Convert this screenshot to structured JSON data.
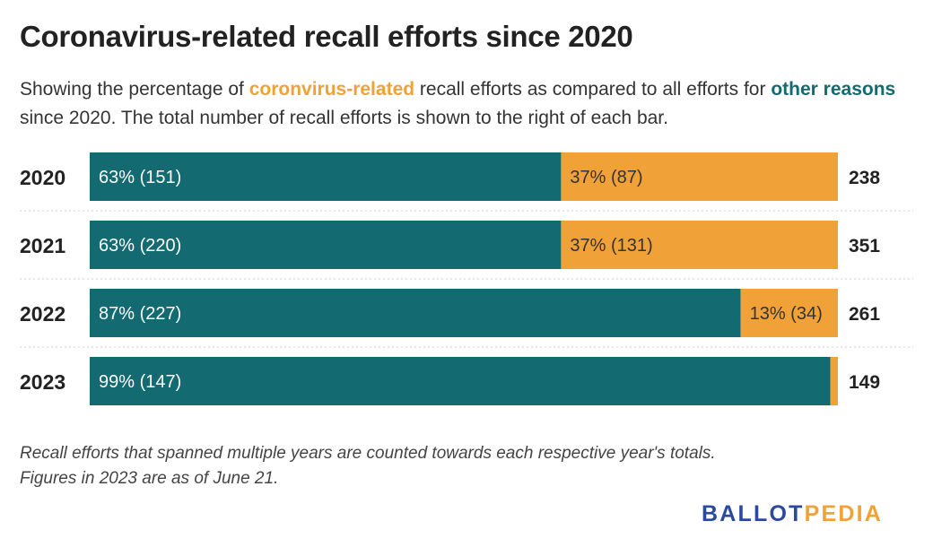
{
  "title": "Coronavirus-related recall efforts since 2020",
  "subtitle": {
    "part1": "Showing the percentage of ",
    "covid_label": "coronvirus-related",
    "part2": " recall efforts as compared to all efforts for ",
    "other_label": "other reasons",
    "part3": " since 2020. The total number of recall efforts is shown to the right of each bar."
  },
  "colors": {
    "other": "#136a70",
    "covid": "#f0a239",
    "separator": "#cccccc"
  },
  "chart_data": {
    "type": "bar",
    "orientation": "horizontal",
    "stacked": "percent",
    "categories": [
      "2020",
      "2021",
      "2022",
      "2023"
    ],
    "series": [
      {
        "key": "other",
        "values": [
          63,
          63,
          87,
          99
        ],
        "counts": [
          151,
          220,
          227,
          147
        ],
        "labels": [
          "63% (151)",
          "63% (220)",
          "87% (227)",
          "99% (147)"
        ]
      },
      {
        "key": "covid",
        "values": [
          37,
          37,
          13,
          1
        ],
        "counts": [
          87,
          131,
          34,
          2
        ],
        "labels": [
          "37% (87)",
          "37% (131)",
          "13% (34)",
          ""
        ]
      }
    ],
    "totals": [
      238,
      351,
      261,
      149
    ],
    "xlim": [
      0,
      100
    ],
    "grid": false
  },
  "footnote": {
    "line1": "Recall efforts that spanned multiple years are counted towards each respective year's totals.",
    "line2": "Figures in 2023 are as of June 21."
  },
  "logo": {
    "part1": "BALLOT",
    "part2": "PEDIA"
  }
}
